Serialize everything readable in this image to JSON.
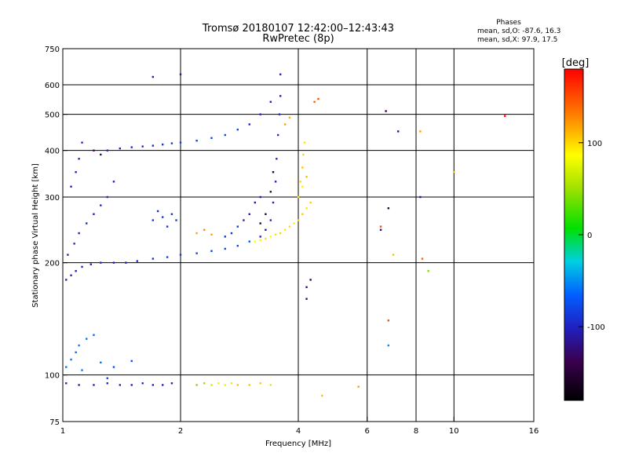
{
  "chart_data": {
    "type": "scatter",
    "title": "Tromsø 20180107 12:42:00–12:43:43",
    "subtitle": "RwPretec (8p)",
    "xlabel": "Frequency [MHz]",
    "ylabel": "Stationary phase Virtual Height [km]",
    "x_scale": "log",
    "y_scale": "log",
    "xlim": [
      1,
      16
    ],
    "ylim": [
      75,
      750
    ],
    "x_ticks": [
      1,
      2,
      4,
      6,
      8,
      10,
      16
    ],
    "y_ticks": [
      75,
      100,
      200,
      300,
      400,
      500,
      600,
      750
    ],
    "x_grid": [
      2,
      4,
      6,
      8,
      10
    ],
    "y_grid": [
      100,
      200,
      300,
      400,
      500,
      600
    ],
    "colorbar": {
      "label": "[deg]",
      "range": [
        -180,
        180
      ],
      "ticks": [
        100,
        0,
        -100
      ]
    },
    "stats": {
      "title": "Phases",
      "line_o": "mean, sd,O: -87.6, 16.3",
      "line_x": "mean, sd,X: 97.9, 17.5"
    },
    "series": [
      {
        "points": [
          [
            1.02,
            180,
            -110
          ],
          [
            1.05,
            185,
            -108
          ],
          [
            1.08,
            190,
            -112
          ],
          [
            1.12,
            195,
            -106
          ],
          [
            1.18,
            198,
            -110
          ],
          [
            1.25,
            200,
            -104
          ],
          [
            1.35,
            200,
            -108
          ],
          [
            1.45,
            200,
            -112
          ],
          [
            1.55,
            202,
            -106
          ],
          [
            1.7,
            205,
            -100
          ],
          [
            1.85,
            207,
            -98
          ],
          [
            2.0,
            210,
            -96
          ],
          [
            2.2,
            212,
            -94
          ],
          [
            2.4,
            215,
            -92
          ],
          [
            2.6,
            218,
            -90
          ],
          [
            2.8,
            222,
            -88
          ],
          [
            3.0,
            228,
            -86
          ],
          [
            3.2,
            235,
            -110
          ],
          [
            3.3,
            245,
            -115
          ],
          [
            3.4,
            260,
            -112
          ],
          [
            3.45,
            290,
            -108
          ],
          [
            3.5,
            330,
            -110
          ],
          [
            3.52,
            380,
            -106
          ],
          [
            3.55,
            440,
            -104
          ],
          [
            3.58,
            500,
            -108
          ],
          [
            3.6,
            560,
            -112
          ],
          [
            3.6,
            640,
            -110
          ],
          [
            1.03,
            210,
            -106
          ],
          [
            1.07,
            225,
            -104
          ],
          [
            1.1,
            240,
            -108
          ],
          [
            1.15,
            255,
            -102
          ],
          [
            1.2,
            270,
            -110
          ],
          [
            1.25,
            285,
            -106
          ],
          [
            1.3,
            300,
            -104
          ],
          [
            1.35,
            330,
            -108
          ],
          [
            1.05,
            320,
            -110
          ],
          [
            1.08,
            350,
            -112
          ],
          [
            1.1,
            380,
            -108
          ],
          [
            1.12,
            420,
            -104
          ],
          [
            1.3,
            400,
            -112
          ],
          [
            1.4,
            405,
            -110
          ],
          [
            1.5,
            408,
            -108
          ],
          [
            1.6,
            410,
            -106
          ],
          [
            1.7,
            412,
            -104
          ],
          [
            1.8,
            415,
            -100
          ],
          [
            1.9,
            418,
            -98
          ],
          [
            2.0,
            420,
            -96
          ],
          [
            2.2,
            425,
            -94
          ],
          [
            2.4,
            432,
            -92
          ],
          [
            2.6,
            440,
            -90
          ],
          [
            2.8,
            455,
            -92
          ],
          [
            3.0,
            470,
            -108
          ],
          [
            3.2,
            500,
            -110
          ],
          [
            3.4,
            540,
            -112
          ],
          [
            1.7,
            260,
            -100
          ],
          [
            1.75,
            275,
            -104
          ],
          [
            1.8,
            265,
            -98
          ],
          [
            1.85,
            250,
            -102
          ],
          [
            1.9,
            270,
            -100
          ],
          [
            1.95,
            260,
            -96
          ],
          [
            2.6,
            235,
            -98
          ],
          [
            2.7,
            240,
            -102
          ],
          [
            2.8,
            250,
            -96
          ],
          [
            2.9,
            260,
            -110
          ],
          [
            3.0,
            270,
            -114
          ],
          [
            3.1,
            290,
            -116
          ],
          [
            3.2,
            300,
            -112
          ],
          [
            1.02,
            95,
            -108
          ],
          [
            1.1,
            94,
            -110
          ],
          [
            1.2,
            94,
            -112
          ],
          [
            1.3,
            95,
            -106
          ],
          [
            1.4,
            94,
            -108
          ],
          [
            1.5,
            94,
            -110
          ],
          [
            1.6,
            95,
            -104
          ],
          [
            1.7,
            94,
            -112
          ],
          [
            1.8,
            94,
            -108
          ],
          [
            1.9,
            95,
            -110
          ],
          [
            1.02,
            105,
            -70
          ],
          [
            1.05,
            110,
            -68
          ],
          [
            1.08,
            115,
            -72
          ],
          [
            1.1,
            120,
            -66
          ],
          [
            1.15,
            125,
            -70
          ],
          [
            1.2,
            128,
            -74
          ],
          [
            1.12,
            103,
            -68
          ],
          [
            1.25,
            108,
            -72
          ],
          [
            1.3,
            98,
            -90
          ],
          [
            1.35,
            105,
            -86
          ],
          [
            1.5,
            109,
            -88
          ]
        ]
      },
      {
        "points": [
          [
            3.1,
            228,
            90
          ],
          [
            3.2,
            230,
            95
          ],
          [
            3.3,
            232,
            100
          ],
          [
            3.4,
            235,
            92
          ],
          [
            3.5,
            238,
            98
          ],
          [
            3.6,
            240,
            104
          ],
          [
            3.7,
            245,
            96
          ],
          [
            3.8,
            250,
            102
          ],
          [
            3.9,
            255,
            94
          ],
          [
            4.0,
            260,
            100
          ],
          [
            4.1,
            270,
            106
          ],
          [
            4.2,
            280,
            98
          ],
          [
            4.3,
            290,
            104
          ],
          [
            4.0,
            300,
            96
          ],
          [
            4.05,
            330,
            100
          ],
          [
            4.1,
            360,
            108
          ],
          [
            4.12,
            390,
            102
          ],
          [
            4.15,
            420,
            98
          ],
          [
            4.1,
            320,
            95
          ],
          [
            4.2,
            340,
            110
          ],
          [
            3.7,
            470,
            120
          ],
          [
            3.8,
            490,
            115
          ],
          [
            4.4,
            540,
            140
          ],
          [
            4.5,
            550,
            150
          ],
          [
            2.2,
            240,
            120
          ],
          [
            2.3,
            245,
            125
          ],
          [
            2.4,
            238,
            118
          ],
          [
            2.2,
            94,
            40
          ],
          [
            2.3,
            95,
            50
          ],
          [
            2.4,
            94,
            70
          ],
          [
            2.5,
            95,
            85
          ],
          [
            2.6,
            94,
            95
          ],
          [
            2.7,
            95,
            100
          ],
          [
            2.8,
            94,
            110
          ],
          [
            3.0,
            94,
            108
          ],
          [
            3.2,
            95,
            105
          ],
          [
            3.4,
            94,
            100
          ],
          [
            4.6,
            88,
            110
          ],
          [
            5.7,
            93,
            120
          ],
          [
            6.5,
            250,
            150
          ],
          [
            7.0,
            210,
            110
          ],
          [
            8.2,
            450,
            120
          ],
          [
            8.3,
            205,
            140
          ],
          [
            10.0,
            350,
            110
          ],
          [
            8.6,
            190,
            40
          ],
          [
            13.5,
            495,
            175
          ],
          [
            6.8,
            140,
            150
          ]
        ]
      },
      {
        "points": [
          [
            1.2,
            400,
            -140
          ],
          [
            1.25,
            390,
            -135
          ],
          [
            2.0,
            640,
            -120
          ],
          [
            1.7,
            630,
            -115
          ],
          [
            3.2,
            255,
            -150
          ],
          [
            3.3,
            270,
            -145
          ],
          [
            3.4,
            310,
            -140
          ],
          [
            3.45,
            350,
            -150
          ],
          [
            4.2,
            160,
            -130
          ],
          [
            4.3,
            180,
            -140
          ],
          [
            4.2,
            172,
            -125
          ],
          [
            6.7,
            510,
            -140
          ],
          [
            6.5,
            245,
            -130
          ],
          [
            6.8,
            280,
            -150
          ],
          [
            8.2,
            300,
            -120
          ],
          [
            7.2,
            450,
            -125
          ],
          [
            6.8,
            120,
            -60
          ]
        ]
      }
    ]
  }
}
